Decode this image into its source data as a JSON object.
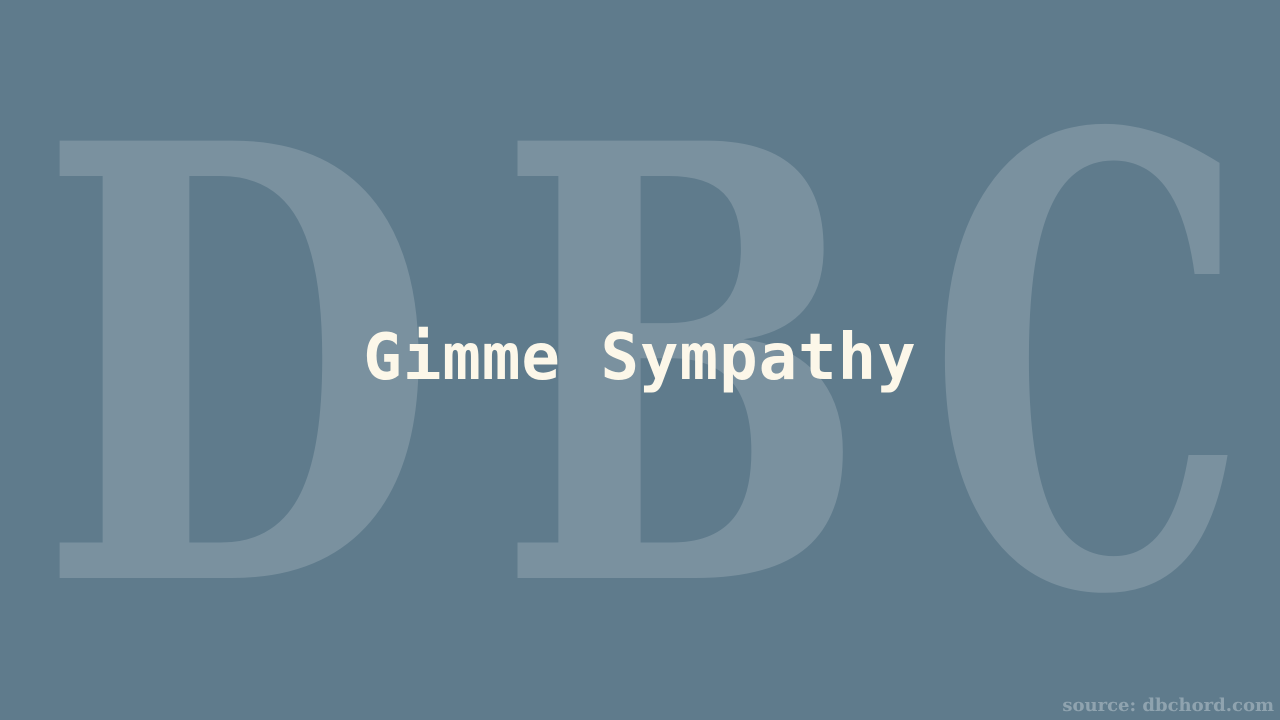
{
  "watermark": {
    "letters": [
      "D",
      "B",
      "C"
    ]
  },
  "song": {
    "title": "Gimme Sympathy"
  },
  "footer": {
    "source_label": "source: dbchord.com"
  },
  "colors": {
    "background": "#5f7b8c",
    "title_text": "#fcf7e9"
  }
}
